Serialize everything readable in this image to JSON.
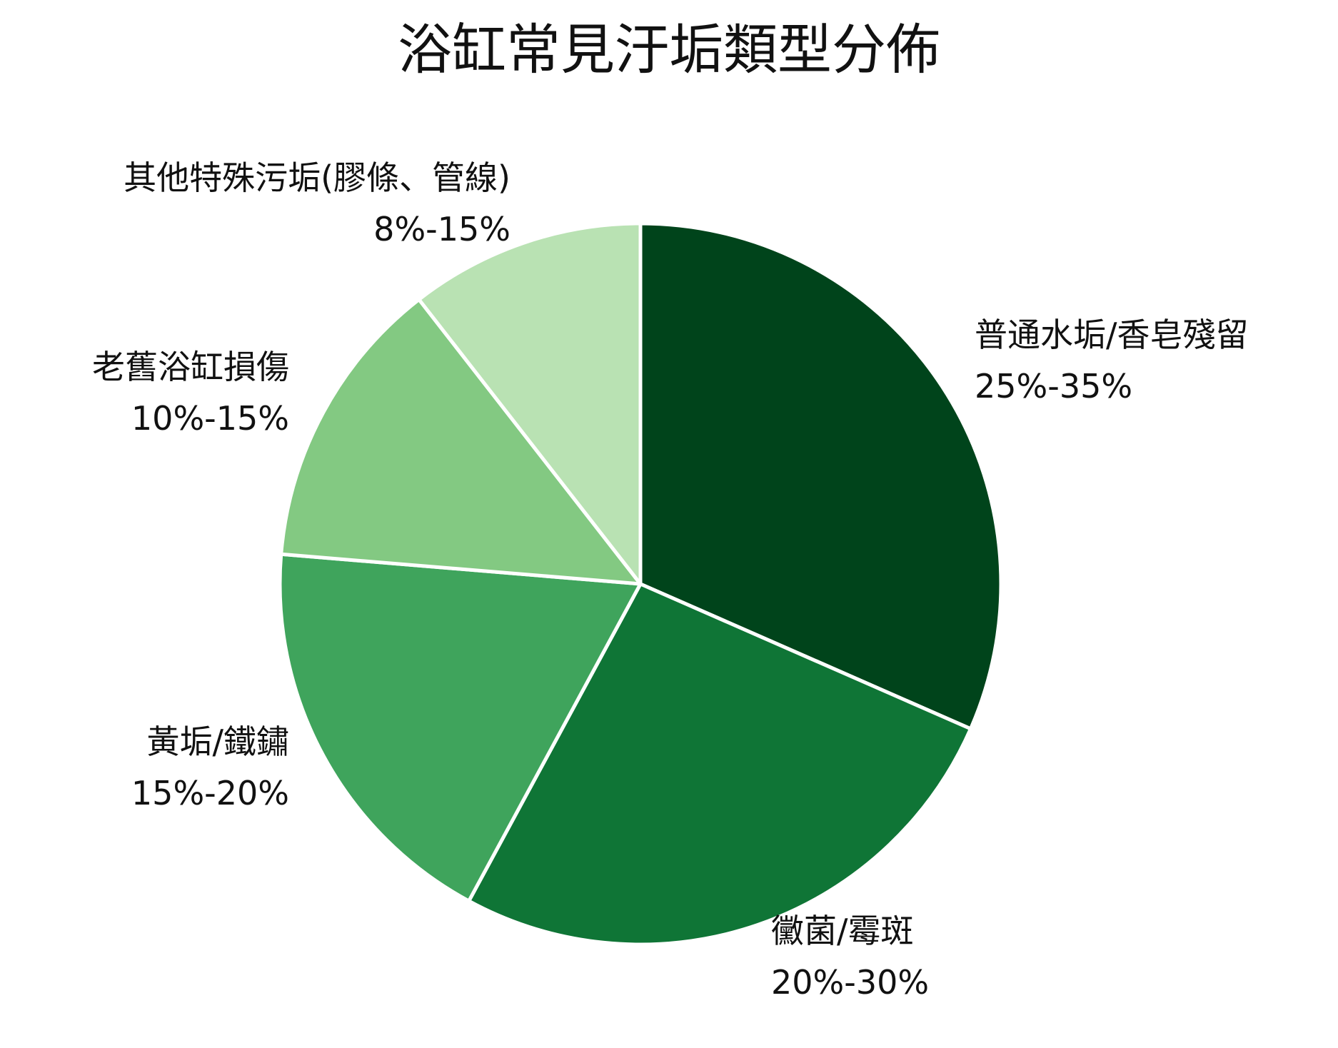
{
  "chart_data": {
    "type": "pie",
    "title": "浴缸常見汙垢類型分佈",
    "start_angle_deg": 90,
    "direction": "clockwise",
    "slices": [
      {
        "name": "普通水垢/香皂殘留",
        "range_label": "25%-35%",
        "value": 30,
        "color": "#00441b"
      },
      {
        "name": "黴菌/霉斑",
        "range_label": "20%-30%",
        "value": 25,
        "color": "#0f7536"
      },
      {
        "name": "黃垢/鐵鏽",
        "range_label": "15%-20%",
        "value": 17.5,
        "color": "#3fa45c"
      },
      {
        "name": "老舊浴缸損傷",
        "range_label": "10%-15%",
        "value": 12.5,
        "color": "#83c982"
      },
      {
        "name": "其他特殊污垢(膠條、管線)",
        "range_label": "8%-15%",
        "value": 10,
        "color": "#b9e2b3"
      }
    ]
  }
}
